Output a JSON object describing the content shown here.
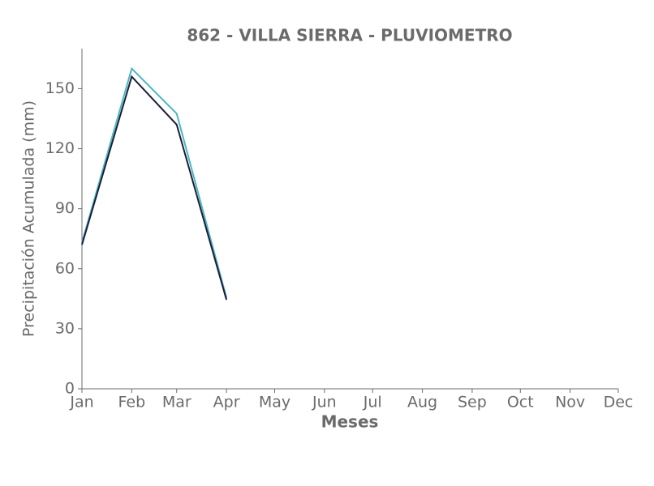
{
  "chart_data": {
    "type": "line",
    "title": "862 - VILLA SIERRA - PLUVIOMETRO",
    "xlabel": "Meses",
    "ylabel": "Precipitación Acumulada (mm)",
    "x": [
      1,
      32,
      60,
      91
    ],
    "series": [
      {
        "color": "#4bb8c0",
        "values": [
          73,
          160,
          137.5,
          45.5
        ]
      },
      {
        "color": "#1c1c3a",
        "values": [
          72,
          156,
          132,
          44.5
        ]
      }
    ],
    "xlim": [
      1,
      335
    ],
    "xticks": [
      {
        "value": 1,
        "label": "Jan"
      },
      {
        "value": 32,
        "label": "Feb"
      },
      {
        "value": 60,
        "label": "Mar"
      },
      {
        "value": 91,
        "label": "Apr"
      },
      {
        "value": 121,
        "label": "May"
      },
      {
        "value": 152,
        "label": "Jun"
      },
      {
        "value": 182,
        "label": "Jul"
      },
      {
        "value": 213,
        "label": "Aug"
      },
      {
        "value": 244,
        "label": "Sep"
      },
      {
        "value": 274,
        "label": "Oct"
      },
      {
        "value": 305,
        "label": "Nov"
      },
      {
        "value": 335,
        "label": "Dec"
      }
    ],
    "ylim": [
      0,
      170
    ],
    "yticks": [
      0,
      30,
      60,
      90,
      120,
      150
    ],
    "grid": false
  }
}
